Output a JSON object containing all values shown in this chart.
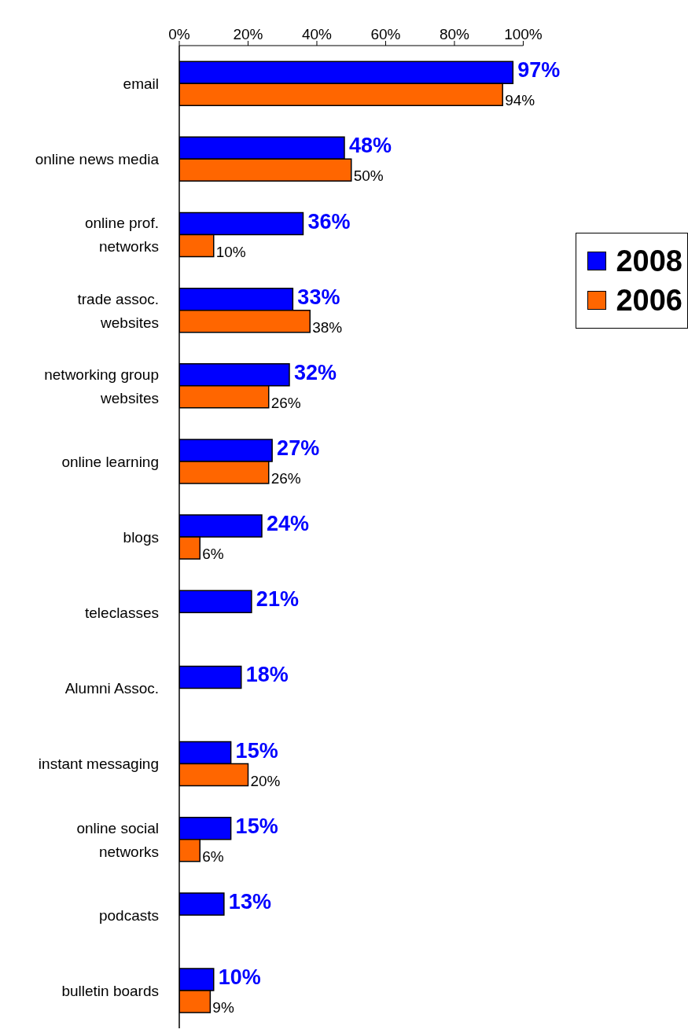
{
  "chart_data": {
    "type": "bar",
    "orientation": "horizontal",
    "categories": [
      "email",
      "online news media",
      "online prof. networks",
      "trade assoc. websites",
      "networking group websites",
      "online learning",
      "blogs",
      "teleclasses",
      "Alumni Assoc.",
      "instant messaging",
      "online social networks",
      "podcasts",
      "bulletin boards"
    ],
    "series": [
      {
        "name": "2008",
        "color": "#0000ff",
        "values": [
          97,
          48,
          36,
          33,
          32,
          27,
          24,
          21,
          18,
          15,
          15,
          13,
          10
        ],
        "value_labels": [
          "97%",
          "48%",
          "36%",
          "33%",
          "32%",
          "27%",
          "24%",
          "21%",
          "18%",
          "15%",
          "15%",
          "13%",
          "10%"
        ]
      },
      {
        "name": "2006",
        "color": "#ff6600",
        "values": [
          94,
          50,
          10,
          38,
          26,
          26,
          6,
          null,
          null,
          20,
          6,
          null,
          9
        ],
        "value_labels": [
          "94%",
          "50%",
          "10%",
          "38%",
          "26%",
          "26%",
          "6%",
          null,
          null,
          "20%",
          "6%",
          null,
          "9%"
        ]
      }
    ],
    "xlim": [
      0,
      100
    ],
    "xticks": [
      {
        "value": 0,
        "label": "0%"
      },
      {
        "value": 20,
        "label": "20%"
      },
      {
        "value": 40,
        "label": "40%"
      },
      {
        "value": 60,
        "label": "60%"
      },
      {
        "value": 80,
        "label": "80%"
      },
      {
        "value": 100,
        "label": "100%"
      }
    ],
    "legend": "right",
    "grid": false
  }
}
